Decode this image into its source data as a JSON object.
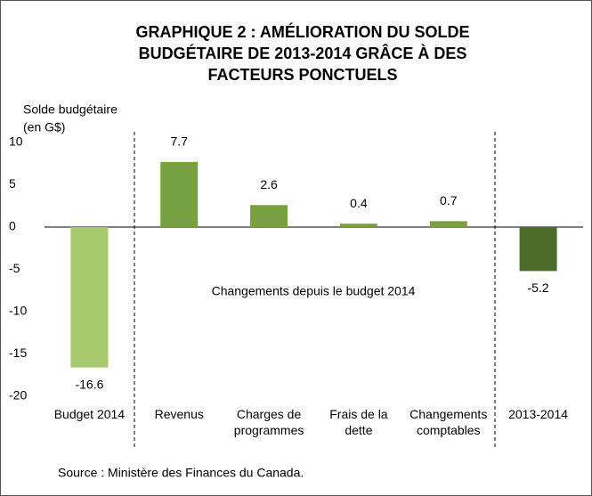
{
  "chart_data": {
    "type": "bar",
    "title": [
      "GRAPHIQUE 2 : AMÉLIORATION DU SOLDE",
      "BUDGÉTAIRE DE 2013-2014 GRÂCE À DES",
      "FACTEURS PONCTUELS"
    ],
    "y_label": [
      "Solde budgétaire",
      "(en G$)"
    ],
    "categories": [
      "Budget 2014",
      "Revenus",
      "Charges de\nprogrammes",
      "Frais de la\ndette",
      "Changements\ncomptables",
      "2013-2014"
    ],
    "values": [
      -16.6,
      7.7,
      2.6,
      0.4,
      0.7,
      -5.2
    ],
    "colors": [
      "#a6c96c",
      "#77a040",
      "#77a040",
      "#77a040",
      "#77a040",
      "#4f6b2b"
    ],
    "ylim": [
      -20,
      10
    ],
    "yticks": [
      10,
      5,
      0,
      -5,
      -10,
      -15,
      -20
    ],
    "annotation": "Changements depuis le budget 2014",
    "source": "Source : Ministère des Finances du Canada."
  }
}
